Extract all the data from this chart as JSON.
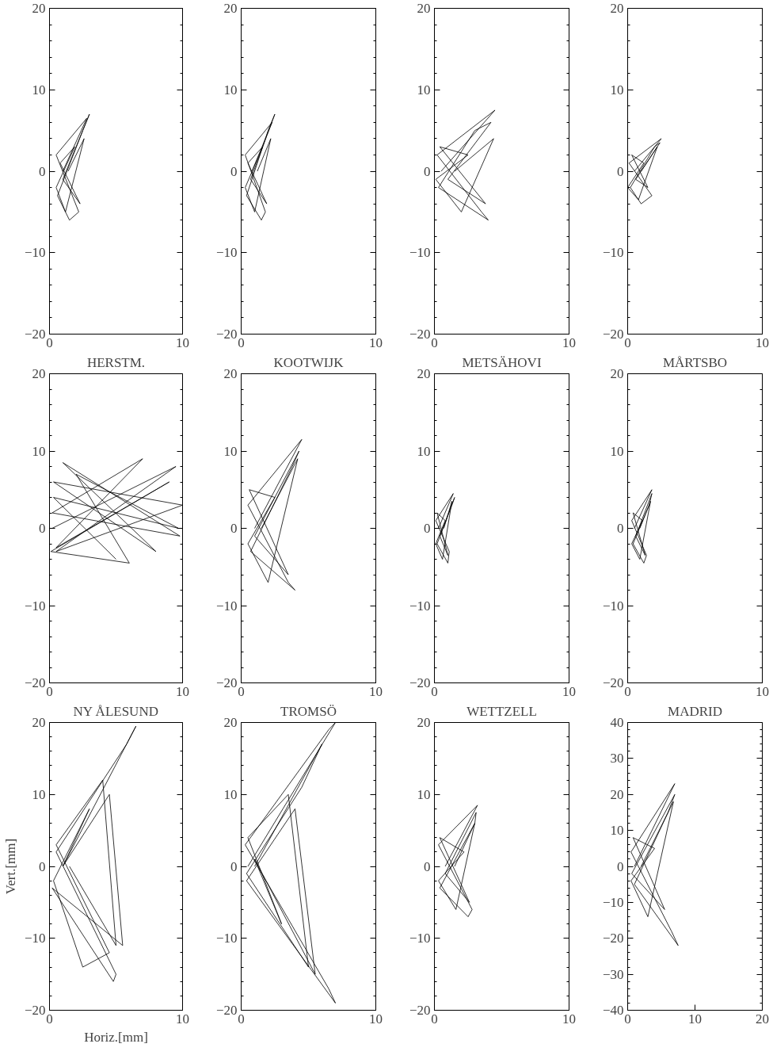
{
  "chart_data": [
    {
      "type": "line",
      "color": "#000000",
      "xlim": [
        0,
        10
      ],
      "ylim": [
        -20,
        20
      ],
      "xticks": [
        0,
        10
      ],
      "yticks": [
        -20,
        -10,
        0,
        10,
        20
      ],
      "x": [
        1,
        2.8,
        0.5,
        2.2,
        1.5,
        0.6,
        2.5,
        3,
        1,
        2.3,
        0.8,
        1.9,
        0.5,
        1.2,
        2.6,
        1.4
      ],
      "values": [
        0,
        6.5,
        2,
        -5,
        -6,
        -3,
        5,
        7,
        -1,
        -4,
        1,
        3,
        -2,
        -5,
        4,
        0
      ]
    },
    {
      "type": "line",
      "color": "#000000",
      "xlim": [
        0,
        10
      ],
      "ylim": [
        -20,
        20
      ],
      "xticks": [
        0,
        10
      ],
      "yticks": [
        -20,
        -10,
        0,
        10,
        20
      ],
      "x": [
        0.8,
        2.3,
        0.3,
        1.8,
        1.5,
        0.4,
        2,
        2.5,
        0.7,
        1.9,
        0.5,
        1.6,
        0.3,
        1,
        2.2,
        1.2
      ],
      "values": [
        0,
        6,
        2,
        -5,
        -6,
        -3,
        5,
        7,
        -1,
        -4,
        1,
        3,
        -2,
        -5,
        4,
        0
      ]
    },
    {
      "type": "line",
      "color": "#000000",
      "xlim": [
        0,
        10
      ],
      "ylim": [
        -20,
        20
      ],
      "xticks": [
        0,
        10
      ],
      "yticks": [
        -20,
        -10,
        0,
        10,
        20
      ],
      "x": [
        0.5,
        4.5,
        0.2,
        3.5,
        4,
        0.3,
        3,
        4.2,
        1,
        3.8,
        0.4,
        2.5,
        0.1,
        2,
        4.4,
        1.5
      ],
      "values": [
        0,
        7.5,
        2,
        -5,
        -6,
        -2,
        5,
        6,
        -1,
        -4,
        3,
        2,
        -1,
        -5,
        4,
        0
      ]
    },
    {
      "type": "line",
      "color": "#000000",
      "xlim": [
        0,
        10
      ],
      "ylim": [
        -20,
        20
      ],
      "xticks": [
        0,
        10
      ],
      "yticks": [
        -20,
        -10,
        0,
        10,
        20
      ],
      "x": [
        0.5,
        2.5,
        0.1,
        1.8,
        1,
        0.2,
        2,
        2.4,
        0.6,
        1.5,
        0.3,
        1.2,
        0,
        0.8,
        2.2,
        1
      ],
      "values": [
        0,
        4,
        1,
        -3,
        -4,
        -2,
        3,
        3.5,
        -1,
        -2,
        2,
        1,
        -2,
        -3.5,
        3,
        0
      ]
    },
    {
      "type": "line",
      "title": "HERSTM.",
      "color": "#000000",
      "xlim": [
        0,
        10
      ],
      "ylim": [
        -20,
        20
      ],
      "xticks": [
        0,
        10
      ],
      "yticks": [
        -20,
        -10,
        0,
        10,
        20
      ],
      "x": [
        0.2,
        9.5,
        0.5,
        10,
        0.3,
        8,
        1,
        9.8,
        0.2,
        7,
        0.5,
        9,
        0.1,
        6,
        2,
        9.7,
        0.3,
        5
      ],
      "values": [
        0,
        8,
        -3,
        3,
        6,
        -3,
        8.5,
        -1,
        2,
        9,
        -2.5,
        6,
        -3,
        -4.5,
        7,
        0,
        4,
        -4
      ]
    },
    {
      "type": "line",
      "title": "KOOTWIJK",
      "color": "#000000",
      "xlim": [
        0,
        10
      ],
      "ylim": [
        -20,
        20
      ],
      "xticks": [
        0,
        10
      ],
      "yticks": [
        -20,
        -10,
        0,
        10,
        20
      ],
      "x": [
        1,
        4.5,
        0.5,
        3.5,
        4,
        0.7,
        3.8,
        4.3,
        1,
        3.5,
        0.6,
        2.5,
        0.5,
        2,
        4.2,
        1.5
      ],
      "values": [
        0,
        11.5,
        3,
        -7,
        -8,
        -3,
        8,
        10,
        -1,
        -6,
        5,
        4,
        -2,
        -7,
        9,
        0
      ]
    },
    {
      "type": "line",
      "title": "METSÄHOVI",
      "color": "#000000",
      "xlim": [
        0,
        10
      ],
      "ylim": [
        -20,
        20
      ],
      "xticks": [
        0,
        10
      ],
      "yticks": [
        -20,
        -10,
        0,
        10,
        20
      ],
      "x": [
        0.3,
        1.4,
        0.1,
        1.1,
        1,
        0.2,
        1.3,
        1.5,
        0.4,
        1,
        0.2,
        0.8,
        0.1,
        0.6,
        1.3,
        0.7
      ],
      "values": [
        0,
        4.5,
        1,
        -3,
        -4.5,
        -2,
        3,
        4,
        -1,
        -3.5,
        2,
        1,
        -2,
        -4,
        3.5,
        0
      ]
    },
    {
      "type": "line",
      "title": "MÅRTSBO",
      "color": "#000000",
      "xlim": [
        0,
        10
      ],
      "ylim": [
        -20,
        20
      ],
      "xticks": [
        0,
        10
      ],
      "yticks": [
        -20,
        -10,
        0,
        10,
        20
      ],
      "x": [
        0.5,
        1.8,
        0.3,
        1.4,
        1.2,
        0.4,
        1.6,
        1.8,
        0.6,
        1.3,
        0.4,
        1.1,
        0.3,
        0.9,
        1.7,
        0.9
      ],
      "values": [
        0,
        5,
        1,
        -3.5,
        -4.5,
        -2,
        3,
        4.5,
        -1,
        -3.5,
        2,
        1,
        -2,
        -4,
        3.5,
        0
      ]
    },
    {
      "type": "line",
      "title": "NY ÅLESUND",
      "xlabel": "Horiz.[mm]",
      "ylabel": "Vert.[mm]",
      "color": "#000000",
      "xlim": [
        0,
        10
      ],
      "ylim": [
        -20,
        20
      ],
      "xticks": [
        0,
        10
      ],
      "yticks": [
        -20,
        -10,
        0,
        10,
        20
      ],
      "x": [
        1,
        6.5,
        5.8,
        0.5,
        5,
        4.8,
        0.2,
        5.5,
        4.5,
        1,
        3,
        0.3,
        2.5,
        4.5,
        0.5,
        4,
        5,
        1.5
      ],
      "values": [
        0,
        19.5,
        17,
        2,
        -15,
        -16,
        -3,
        -11,
        10,
        0,
        8,
        -2,
        -14,
        -12,
        3,
        12,
        -11,
        0
      ]
    },
    {
      "type": "line",
      "title": "TROMSÖ",
      "color": "#000000",
      "xlim": [
        0,
        10
      ],
      "ylim": [
        -20,
        20
      ],
      "xticks": [
        0,
        10
      ],
      "yticks": [
        -20,
        -10,
        0,
        10,
        20
      ],
      "x": [
        0.5,
        7,
        6.5,
        0.3,
        6.5,
        7,
        0.4,
        4,
        5.5,
        1,
        3,
        0.5,
        3.5,
        5,
        0.4,
        4.5,
        6,
        1
      ],
      "values": [
        0,
        20,
        19,
        3,
        -17,
        -19,
        -2,
        8,
        -15,
        1,
        -8,
        4,
        10,
        -14,
        -1,
        11,
        17,
        0
      ]
    },
    {
      "type": "line",
      "title": "WETTZELL",
      "color": "#000000",
      "xlim": [
        0,
        10
      ],
      "ylim": [
        -20,
        20
      ],
      "xticks": [
        0,
        10
      ],
      "yticks": [
        -20,
        -10,
        0,
        10,
        20
      ],
      "x": [
        0.8,
        3.2,
        0.3,
        2.8,
        2.5,
        0.4,
        3,
        3.1,
        0.8,
        2.6,
        0.4,
        2.2,
        0.3,
        1.6,
        3,
        1.5
      ],
      "values": [
        0,
        8.5,
        3,
        -6,
        -7,
        -3,
        6,
        7.5,
        -1,
        -5,
        4,
        2,
        -2,
        -6,
        6,
        0
      ]
    },
    {
      "type": "line",
      "title": "MADRID",
      "color": "#000000",
      "xlim": [
        0,
        20
      ],
      "ylim": [
        -40,
        40
      ],
      "xticks": [
        0,
        10,
        20
      ],
      "yticks": [
        -40,
        -30,
        -20,
        -10,
        0,
        10,
        20,
        30,
        40
      ],
      "x": [
        1,
        7,
        0.5,
        6.5,
        7.5,
        1,
        6,
        7,
        0.6,
        5.5,
        0.8,
        4,
        0.5,
        3,
        6.8,
        2
      ],
      "values": [
        0,
        23,
        4,
        -18,
        -22,
        -5,
        15,
        20,
        -2,
        -12,
        8,
        5,
        -4,
        -14,
        18,
        0
      ]
    }
  ]
}
